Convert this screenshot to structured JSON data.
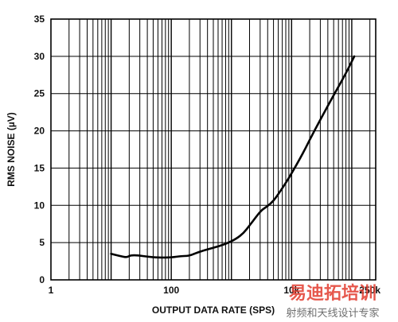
{
  "chart_data": {
    "type": "line",
    "xscale": "log",
    "xlim": [
      1,
      250000
    ],
    "ylim": [
      0,
      35
    ],
    "xlabel": "OUTPUT DATA RATE (SPS)",
    "ylabel": "RMS NOISE (µV)",
    "x_tick_labels": [
      {
        "value": 1,
        "label": "1"
      },
      {
        "value": 100,
        "label": "100"
      },
      {
        "value": 10000,
        "label": "10k"
      },
      {
        "value": 250000,
        "label": "250k"
      }
    ],
    "y_ticks": [
      0,
      5,
      10,
      15,
      20,
      25,
      30,
      35
    ],
    "grid": true,
    "series": [
      {
        "color": "#000000",
        "points": [
          [
            10,
            3.5
          ],
          [
            14,
            3.2
          ],
          [
            18,
            3.0
          ],
          [
            21,
            3.3
          ],
          [
            28,
            3.3
          ],
          [
            40,
            3.1
          ],
          [
            60,
            3.0
          ],
          [
            100,
            3.0
          ],
          [
            150,
            3.2
          ],
          [
            180,
            3.2
          ],
          [
            210,
            3.3
          ],
          [
            300,
            3.8
          ],
          [
            500,
            4.3
          ],
          [
            800,
            4.8
          ],
          [
            1200,
            5.5
          ],
          [
            1600,
            6.3
          ],
          [
            2000,
            7.3
          ],
          [
            2600,
            8.5
          ],
          [
            3200,
            9.4
          ],
          [
            4000,
            9.9
          ],
          [
            5000,
            10.6
          ],
          [
            6000,
            11.5
          ],
          [
            8000,
            13.0
          ],
          [
            10000,
            14.3
          ],
          [
            15000,
            16.8
          ],
          [
            20000,
            18.8
          ],
          [
            30000,
            21.5
          ],
          [
            50000,
            24.8
          ],
          [
            80000,
            27.7
          ],
          [
            110000,
            30.0
          ]
        ]
      }
    ]
  },
  "watermark": {
    "main": "易迪拓培训",
    "sub": "射频和天线设计专家"
  }
}
